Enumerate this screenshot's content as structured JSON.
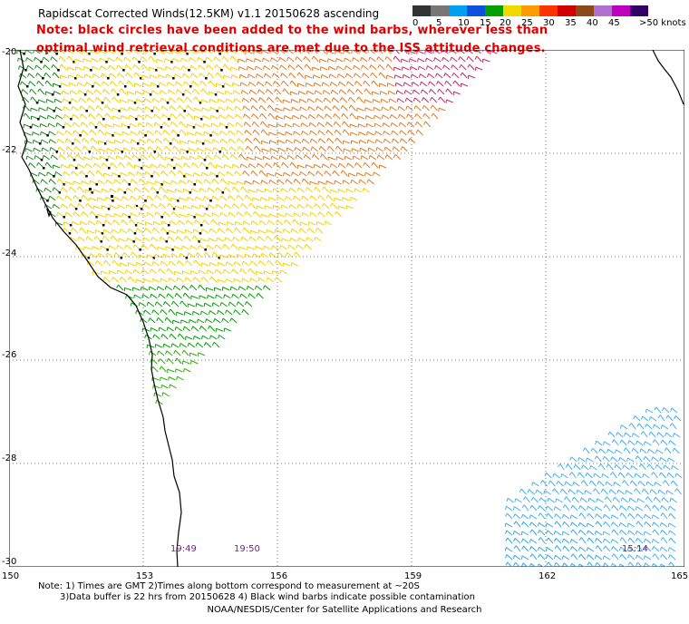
{
  "title": "Rapidscat Corrected Winds(12.5KM) v1.1 20150628 ascending",
  "note_line1": "Note: black circles have been added to the wind barbs, wherever less than",
  "note_line2": "optimal wind retrieval conditions are met due to the ISS attitude changes.",
  "legend": {
    "labels": [
      "0",
      "5",
      "10",
      "15",
      "20",
      "25",
      "30",
      "35",
      "40",
      "45",
      ">50 knots"
    ],
    "colors": [
      "#333333",
      "#777777",
      "#00a0f0",
      "#1050e0",
      "#00a000",
      "#f0d800",
      "#ff9900",
      "#ff3300",
      "#d00000",
      "#8a4a1a",
      "#b070d0",
      "#c000c0",
      "#330066"
    ]
  },
  "lat_labels": [
    "-20",
    "-22",
    "-24",
    "-26",
    "-28",
    "-30"
  ],
  "lon_labels": [
    "150",
    "153",
    "156",
    "159",
    "162",
    "165"
  ],
  "time_labels": [
    "19:49",
    "19:50",
    "15:14"
  ],
  "footnote_line1": "Note: 1) Times are GMT 2)Times along bottom correspond to measurement at ~20S",
  "footnote_line2": "3)Data buffer is 22 hrs from 20150628 4) Black wind barbs indicate possible contamination",
  "credit": "NOAA/NESDIS/Center for Satellite Applications and Research",
  "map": {
    "lat_range": [
      -30,
      -20
    ],
    "lon_range": [
      150,
      165
    ],
    "grid": "dotted",
    "swaths": [
      {
        "name": "main-swath",
        "dominant_speeds_knots": "15-35"
      },
      {
        "name": "southeast-swath",
        "dominant_speeds_knots": "5-15"
      }
    ]
  }
}
